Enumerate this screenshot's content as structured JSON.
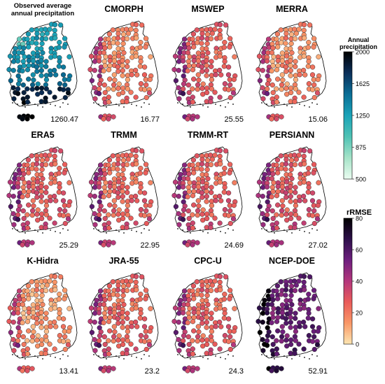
{
  "panels": [
    {
      "title": "Observed average annual precipitation",
      "title_lines": [
        "Observed average",
        "annual precipitation"
      ],
      "value": "1260.47",
      "scale": "precip"
    },
    {
      "title": "CMORPH",
      "value": "16.77",
      "scale": "rrmse",
      "level": 0.22
    },
    {
      "title": "MSWEP",
      "value": "25.55",
      "scale": "rrmse",
      "level": 0.32
    },
    {
      "title": "MERRA",
      "value": "15.06",
      "scale": "rrmse",
      "level": 0.2
    },
    {
      "title": "ERA5",
      "value": "25.29",
      "scale": "rrmse",
      "level": 0.33
    },
    {
      "title": "TRMM",
      "value": "22.95",
      "scale": "rrmse",
      "level": 0.3
    },
    {
      "title": "TRMM-RT",
      "value": "24.69",
      "scale": "rrmse",
      "level": 0.32
    },
    {
      "title": "PERSIANN",
      "value": "27.02",
      "scale": "rrmse",
      "level": 0.35
    },
    {
      "title": "K-Hidra",
      "value": "13.41",
      "scale": "rrmse",
      "level": 0.17
    },
    {
      "title": "JRA-55",
      "value": "23.2",
      "scale": "rrmse",
      "level": 0.3
    },
    {
      "title": "CPC-U",
      "value": "24.3",
      "scale": "rrmse",
      "level": 0.31
    },
    {
      "title": "NCEP-DOE",
      "value": "52.91",
      "scale": "rrmse",
      "level": 0.68
    }
  ],
  "legend_precip": {
    "title_lines": [
      "Annual",
      "precipitation"
    ],
    "ticks": [
      "2000",
      "1625",
      "1250",
      "875",
      "500"
    ],
    "colors": [
      "#000000",
      "#0b2f5a",
      "#0a6e96",
      "#1aa3b8",
      "#4fc2b4",
      "#a6e3c8",
      "#eafcf0"
    ]
  },
  "legend_rrmse": {
    "title": "rRMSE",
    "ticks": [
      "80",
      "60",
      "40",
      "20",
      "0"
    ],
    "colors": [
      "#000000",
      "#2d0f4a",
      "#6e1f7e",
      "#b4367c",
      "#ea5c5a",
      "#f99867",
      "#fde6b2"
    ]
  }
}
